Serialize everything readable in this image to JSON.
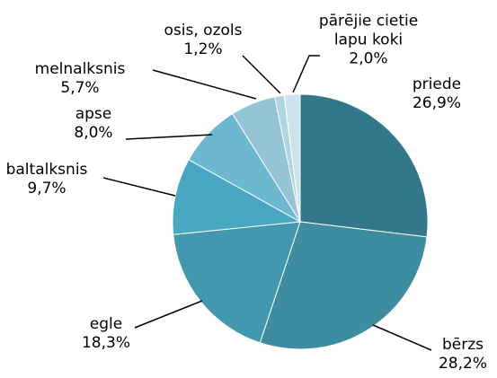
{
  "chart_data": {
    "type": "pie",
    "categories": [
      "priede",
      "bērzs",
      "egle",
      "baltalksnis",
      "apse",
      "melnalksnis",
      "osis, ozols",
      "pārējie cietie lapu koki"
    ],
    "values": [
      26.9,
      28.2,
      18.3,
      9.7,
      8.0,
      5.7,
      1.2,
      2.0
    ],
    "value_labels": [
      "26,9%",
      "28,2%",
      "18,3%",
      "9,7%",
      "8,0%",
      "5,7%",
      "1,2%",
      "2,0%"
    ],
    "colors": [
      "#33788a",
      "#3d8ca0",
      "#4299af",
      "#4aa7c2",
      "#6cb8cf",
      "#95c4d6",
      "#b0d4e2",
      "#cde3ec"
    ]
  }
}
